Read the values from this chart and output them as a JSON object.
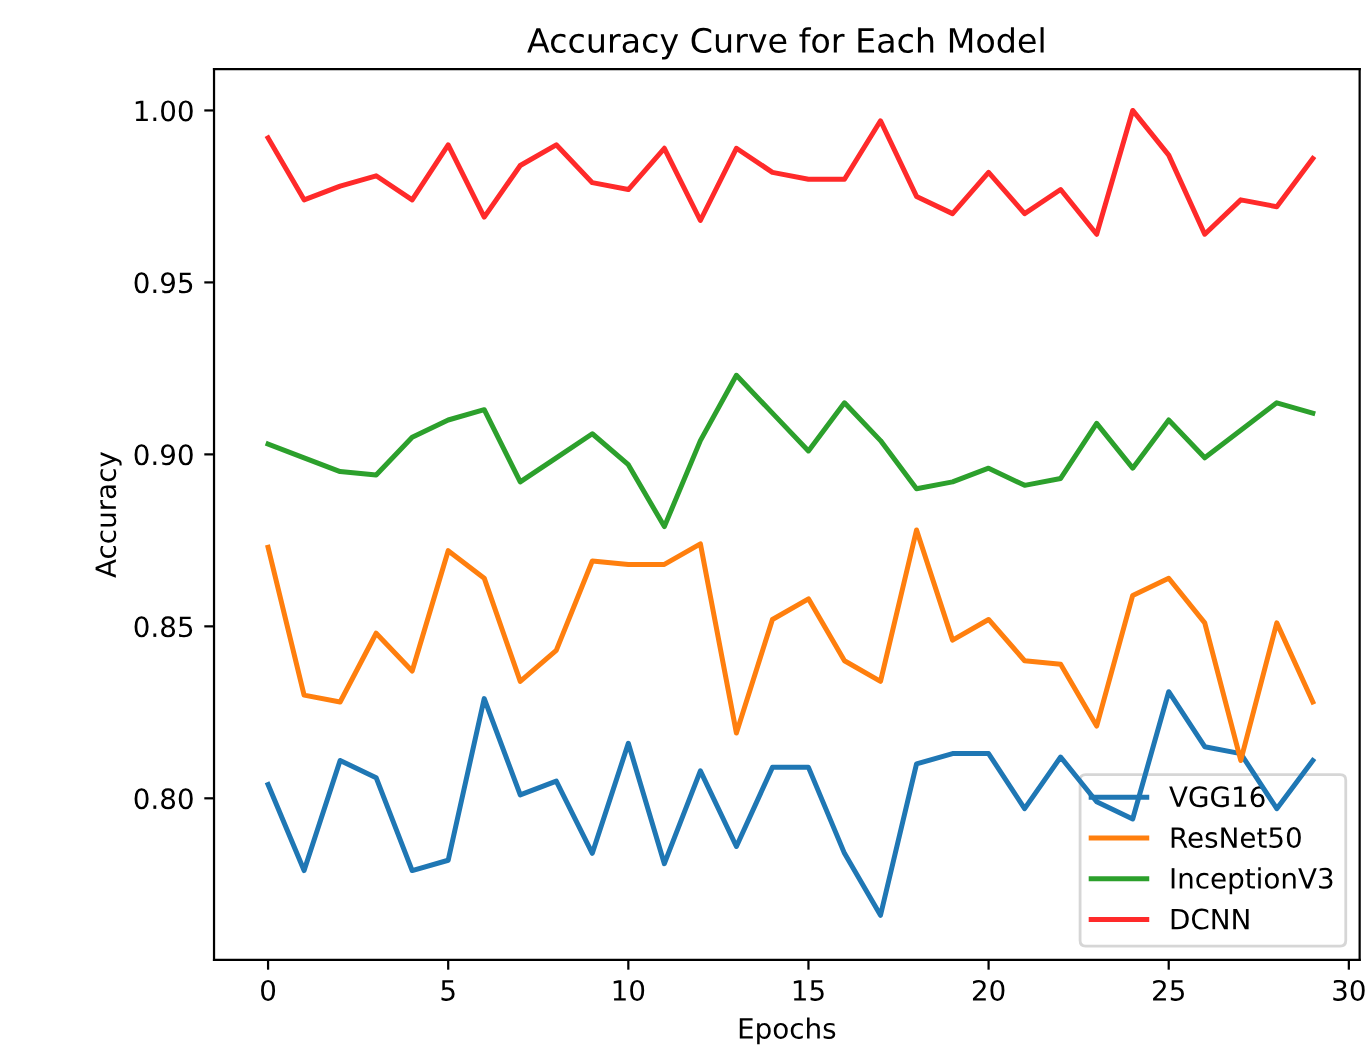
{
  "chart_data": {
    "type": "line",
    "title": "Accuracy Curve for Each Model",
    "xlabel": "Epochs",
    "ylabel": "Accuracy",
    "x": [
      0,
      1,
      2,
      3,
      4,
      5,
      6,
      7,
      8,
      9,
      10,
      11,
      12,
      13,
      14,
      15,
      16,
      17,
      18,
      19,
      20,
      21,
      22,
      23,
      24,
      25,
      26,
      27,
      28,
      29
    ],
    "series": [
      {
        "name": "VGG16",
        "color": "#1f77b4",
        "values": [
          0.804,
          0.779,
          0.811,
          0.806,
          0.779,
          0.782,
          0.829,
          0.801,
          0.805,
          0.784,
          0.816,
          0.781,
          0.808,
          0.786,
          0.809,
          0.809,
          0.784,
          0.766,
          0.81,
          0.813,
          0.813,
          0.797,
          0.812,
          0.799,
          0.794,
          0.831,
          0.815,
          0.813,
          0.797,
          0.811
        ]
      },
      {
        "name": "ResNet50",
        "color": "#ff7f0e",
        "values": [
          0.873,
          0.83,
          0.828,
          0.848,
          0.837,
          0.872,
          0.864,
          0.834,
          0.843,
          0.869,
          0.868,
          0.868,
          0.874,
          0.819,
          0.852,
          0.858,
          0.84,
          0.834,
          0.878,
          0.846,
          0.852,
          0.84,
          0.839,
          0.821,
          0.859,
          0.864,
          0.851,
          0.811,
          0.851,
          0.828
        ]
      },
      {
        "name": "InceptionV3",
        "color": "#2ca02c",
        "values": [
          0.903,
          0.899,
          0.895,
          0.894,
          0.905,
          0.91,
          0.913,
          0.892,
          0.899,
          0.906,
          0.897,
          0.879,
          0.904,
          0.923,
          0.912,
          0.901,
          0.915,
          0.904,
          0.89,
          0.892,
          0.896,
          0.891,
          0.893,
          0.909,
          0.896,
          0.91,
          0.899,
          0.907,
          0.915,
          0.912
        ]
      },
      {
        "name": "DCNN",
        "color": "#ff2a2a",
        "values": [
          0.992,
          0.974,
          0.978,
          0.981,
          0.974,
          0.99,
          0.969,
          0.984,
          0.99,
          0.979,
          0.977,
          0.989,
          0.968,
          0.989,
          0.982,
          0.98,
          0.98,
          0.997,
          0.975,
          0.97,
          0.982,
          0.97,
          0.977,
          0.964,
          1.0,
          0.987,
          0.964,
          0.974,
          0.972,
          0.986
        ]
      }
    ],
    "xlim": [
      -1.5,
      30.3
    ],
    "ylim": [
      0.753,
      1.012
    ],
    "xticks": [
      0,
      5,
      10,
      15,
      20,
      25,
      30
    ],
    "yticks": [
      {
        "value": 0.8,
        "label": "0.80"
      },
      {
        "value": 0.85,
        "label": "0.85"
      },
      {
        "value": 0.9,
        "label": "0.90"
      },
      {
        "value": 0.95,
        "label": "0.95"
      },
      {
        "value": 1.0,
        "label": "1.00"
      }
    ],
    "legend": "lower right",
    "marker": "none",
    "line_style": "solid",
    "grid": false
  }
}
